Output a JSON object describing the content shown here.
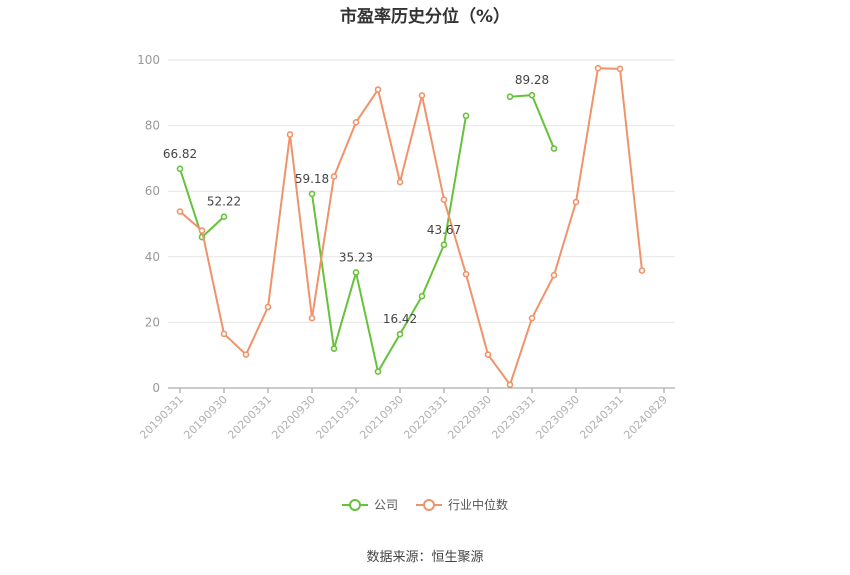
{
  "chart_data": {
    "type": "line",
    "title": "市盈率历史分位（%）",
    "x": [
      "20190331",
      "20190630",
      "20190930",
      "20191231",
      "20200331",
      "20200630",
      "20200930",
      "20201231",
      "20210331",
      "20210630",
      "20210930",
      "20211231",
      "20220331",
      "20220630",
      "20220930",
      "20221231",
      "20230331",
      "20230630",
      "20230930",
      "20231231",
      "20240331",
      "20240630",
      "20240829"
    ],
    "xtick_labels": [
      "20190331",
      "20190930",
      "20200331",
      "20200930",
      "20210331",
      "20210930",
      "20220331",
      "20220930",
      "20230331",
      "20230930",
      "20240331",
      "20240829"
    ],
    "ylim": [
      0,
      100
    ],
    "yticks": [
      0,
      20,
      40,
      60,
      80,
      100
    ],
    "grid": true,
    "legend_position": "bottom",
    "series": [
      {
        "name": "公司",
        "color": "#66c23a",
        "values": [
          66.82,
          46,
          52.22,
          null,
          null,
          null,
          59.18,
          12,
          35.23,
          5,
          16.42,
          28,
          43.67,
          83,
          null,
          88.8,
          89.28,
          73,
          null,
          null,
          null,
          null,
          null
        ],
        "labels": [
          "66.82",
          null,
          "52.22",
          null,
          null,
          null,
          "59.18",
          null,
          "35.23",
          null,
          "16.42",
          null,
          "43.67",
          null,
          null,
          null,
          "89.28",
          null,
          null,
          null,
          null,
          null,
          null
        ]
      },
      {
        "name": "行业中位数",
        "color": "#f0936a",
        "values": [
          53.8,
          48,
          16.5,
          10.2,
          24.7,
          77.3,
          21.3,
          64.5,
          81,
          91,
          62.8,
          89.2,
          57.4,
          34.7,
          10.2,
          1,
          21.3,
          34.4,
          56.7,
          97.5,
          97.3,
          35.8,
          null
        ],
        "labels": []
      }
    ]
  },
  "source": "数据来源：恒生聚源"
}
